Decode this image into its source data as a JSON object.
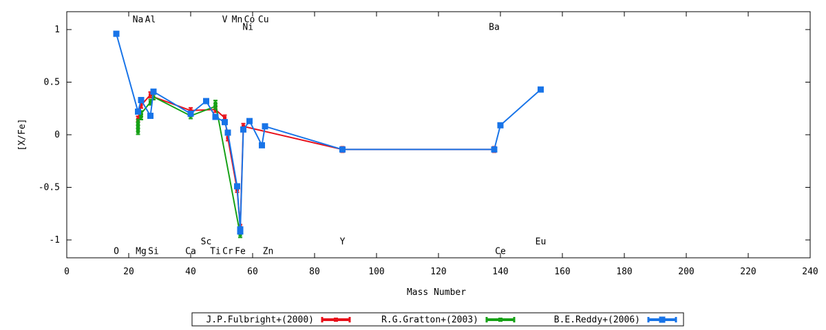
{
  "chart_data": {
    "type": "line",
    "title": "",
    "xlabel": "Mass Number",
    "ylabel": "[X/Fe]",
    "xlim": [
      0,
      240
    ],
    "ylim": [
      -1.17,
      1.17
    ],
    "x_ticks": [
      0,
      20,
      40,
      60,
      80,
      100,
      120,
      140,
      160,
      180,
      200,
      220,
      240
    ],
    "y_ticks": [
      -1,
      -0.5,
      0,
      0.5,
      1
    ],
    "y_tick_labels": [
      "-1",
      "-0.5",
      "0",
      "0.5",
      "1"
    ],
    "grid": false,
    "legend_position": "bottom-center",
    "series": [
      {
        "name": "J.P.Fulbright+(2000)",
        "color": "#e8101a",
        "marker": "errorbar-cross",
        "points": [
          [
            23,
            0.15
          ],
          [
            24,
            0.28
          ],
          [
            27,
            0.38
          ],
          [
            28,
            0.36
          ],
          [
            40,
            0.23
          ],
          [
            48,
            0.24
          ],
          [
            51,
            0.16
          ],
          [
            52,
            -0.03
          ],
          [
            55,
            -0.52
          ],
          [
            56,
            -0.88
          ],
          [
            57,
            0.08
          ],
          [
            89,
            -0.14
          ],
          [
            138,
            -0.14
          ]
        ]
      },
      {
        "name": "R.G.Gratton+(2003)",
        "color": "#16a116",
        "marker": "errorbar-cross",
        "points": [
          [
            23,
            0.03
          ],
          [
            23,
            0.06
          ],
          [
            23,
            0.09
          ],
          [
            23,
            0.12
          ],
          [
            24,
            0.17
          ],
          [
            24,
            0.2
          ],
          [
            27,
            0.31
          ],
          [
            28,
            0.36
          ],
          [
            40,
            0.18
          ],
          [
            48,
            0.27
          ],
          [
            48,
            0.3
          ],
          [
            56,
            -0.95
          ]
        ]
      },
      {
        "name": "B.E.Reddy+(2006)",
        "color": "#1874e8",
        "marker": "square",
        "points": [
          [
            16,
            0.96
          ],
          [
            23,
            0.22
          ],
          [
            24,
            0.33
          ],
          [
            27,
            0.18
          ],
          [
            28,
            0.41
          ],
          [
            40,
            0.2
          ],
          [
            45,
            0.32
          ],
          [
            48,
            0.17
          ],
          [
            51,
            0.12
          ],
          [
            52,
            0.02
          ],
          [
            55,
            -0.49
          ],
          [
            56,
            -0.9
          ],
          [
            56,
            -0.92
          ],
          [
            57,
            0.05
          ],
          [
            59,
            0.13
          ],
          [
            63,
            -0.1
          ],
          [
            64,
            0.08
          ],
          [
            89,
            -0.14
          ],
          [
            138,
            -0.14
          ],
          [
            140,
            0.09
          ],
          [
            153,
            0.43
          ]
        ]
      }
    ],
    "element_labels": [
      {
        "text": "Na",
        "x": 23,
        "y": 1.1
      },
      {
        "text": "Al",
        "x": 27,
        "y": 1.1
      },
      {
        "text": "V",
        "x": 51,
        "y": 1.1
      },
      {
        "text": "Mn",
        "x": 55,
        "y": 1.1
      },
      {
        "text": "Co",
        "x": 59,
        "y": 1.1
      },
      {
        "text": "Cu",
        "x": 63.5,
        "y": 1.1
      },
      {
        "text": "Ni",
        "x": 58.5,
        "y": 1.03
      },
      {
        "text": "Ba",
        "x": 138,
        "y": 1.03
      },
      {
        "text": "Sc",
        "x": 45,
        "y": -1.01
      },
      {
        "text": "Y",
        "x": 89,
        "y": -1.01
      },
      {
        "text": "Eu",
        "x": 153,
        "y": -1.01
      },
      {
        "text": "O",
        "x": 16,
        "y": -1.1
      },
      {
        "text": "Mg",
        "x": 24,
        "y": -1.1
      },
      {
        "text": "Si",
        "x": 28,
        "y": -1.1
      },
      {
        "text": "Ca",
        "x": 40,
        "y": -1.1
      },
      {
        "text": "Ti",
        "x": 48,
        "y": -1.1
      },
      {
        "text": "Cr",
        "x": 52,
        "y": -1.1
      },
      {
        "text": "Fe",
        "x": 56,
        "y": -1.1
      },
      {
        "text": "Zn",
        "x": 65,
        "y": -1.1
      },
      {
        "text": "Ce",
        "x": 140,
        "y": -1.1
      }
    ]
  }
}
